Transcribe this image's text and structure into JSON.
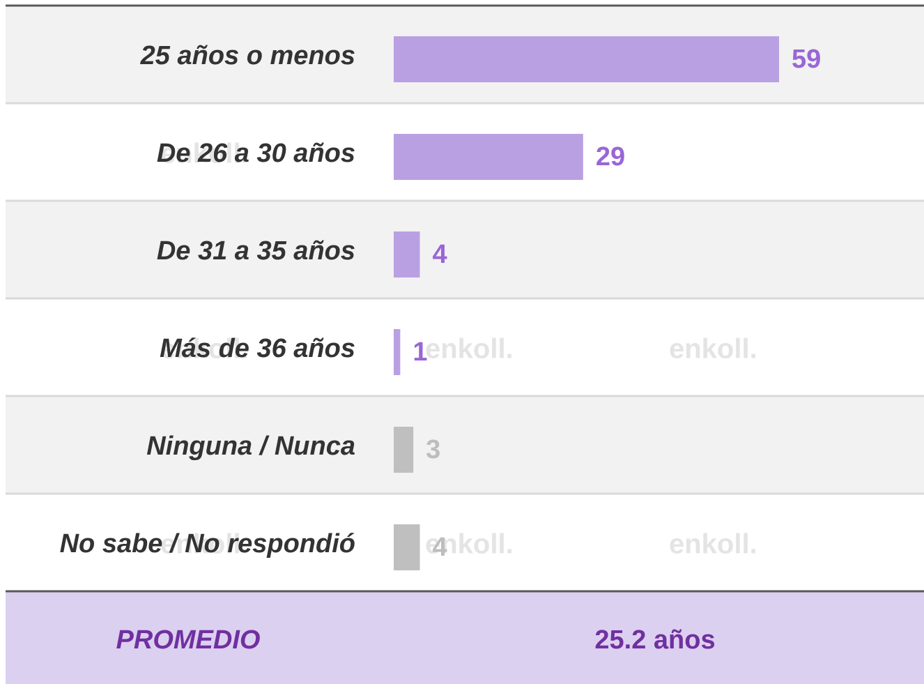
{
  "chart_data": {
    "type": "bar",
    "categories": [
      "25 años o menos",
      "De 26 a 30 años",
      "De 31 a 35 años",
      "Más de 36 años",
      "Ninguna / Nunca",
      "No sabe / No respondió"
    ],
    "values": [
      59,
      29,
      4,
      1,
      3,
      4
    ],
    "colors": [
      "#b9a0e2",
      "#b9a0e2",
      "#b9a0e2",
      "#b9a0e2",
      "#bfbfbf",
      "#bfbfbf"
    ],
    "label_colors": [
      "#9966d6",
      "#9966d6",
      "#9966d6",
      "#9966d6",
      "#bdbdbd",
      "#bdbdbd"
    ],
    "average_label": "PROMEDIO",
    "average_value": "25.2 años",
    "watermark": "enkoll."
  }
}
